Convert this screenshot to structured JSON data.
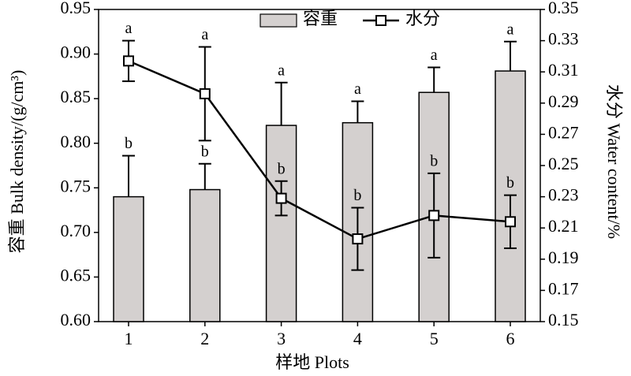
{
  "chart_data": {
    "type": "bar-line",
    "categories": [
      "1",
      "2",
      "3",
      "4",
      "5",
      "6"
    ],
    "x_label": "样地 Plots",
    "y_label": "容重 Bulk density/(g/cm³)",
    "y2_label": "水分 Water content/%",
    "ylim": [
      0.6,
      0.95
    ],
    "yticks": [
      {
        "value": 0.6,
        "label": "0.60"
      },
      0.65,
      {
        "value": 0.7,
        "label": "0.70"
      },
      0.75,
      {
        "value": 0.8,
        "label": "0.80"
      },
      0.85,
      {
        "value": 0.9,
        "label": "0.90"
      },
      0.95
    ],
    "y2lim": [
      0.15,
      0.35
    ],
    "y2ticks": [
      0.15,
      0.17,
      0.19,
      0.21,
      0.23,
      0.25,
      0.27,
      0.29,
      0.31,
      0.33,
      0.35
    ],
    "series": [
      {
        "name": "容重",
        "kind": "bar",
        "color": "#d4d0cf",
        "values": [
          0.74,
          0.748,
          0.82,
          0.823,
          0.857,
          0.881
        ],
        "errors": [
          0.046,
          0.029,
          0.048,
          0.024,
          0.028,
          0.033
        ],
        "letters": [
          "b",
          "b",
          "a",
          "a",
          "a",
          "a"
        ]
      },
      {
        "name": "水分",
        "kind": "line",
        "axis": "y2",
        "color": "#000000",
        "values": [
          0.317,
          0.296,
          0.229,
          0.203,
          0.218,
          0.214
        ],
        "errors": [
          0.013,
          0.03,
          0.011,
          0.02,
          0.027,
          0.017
        ],
        "letters": [
          "a",
          "a",
          "b",
          "b",
          "b",
          "b"
        ]
      }
    ]
  }
}
